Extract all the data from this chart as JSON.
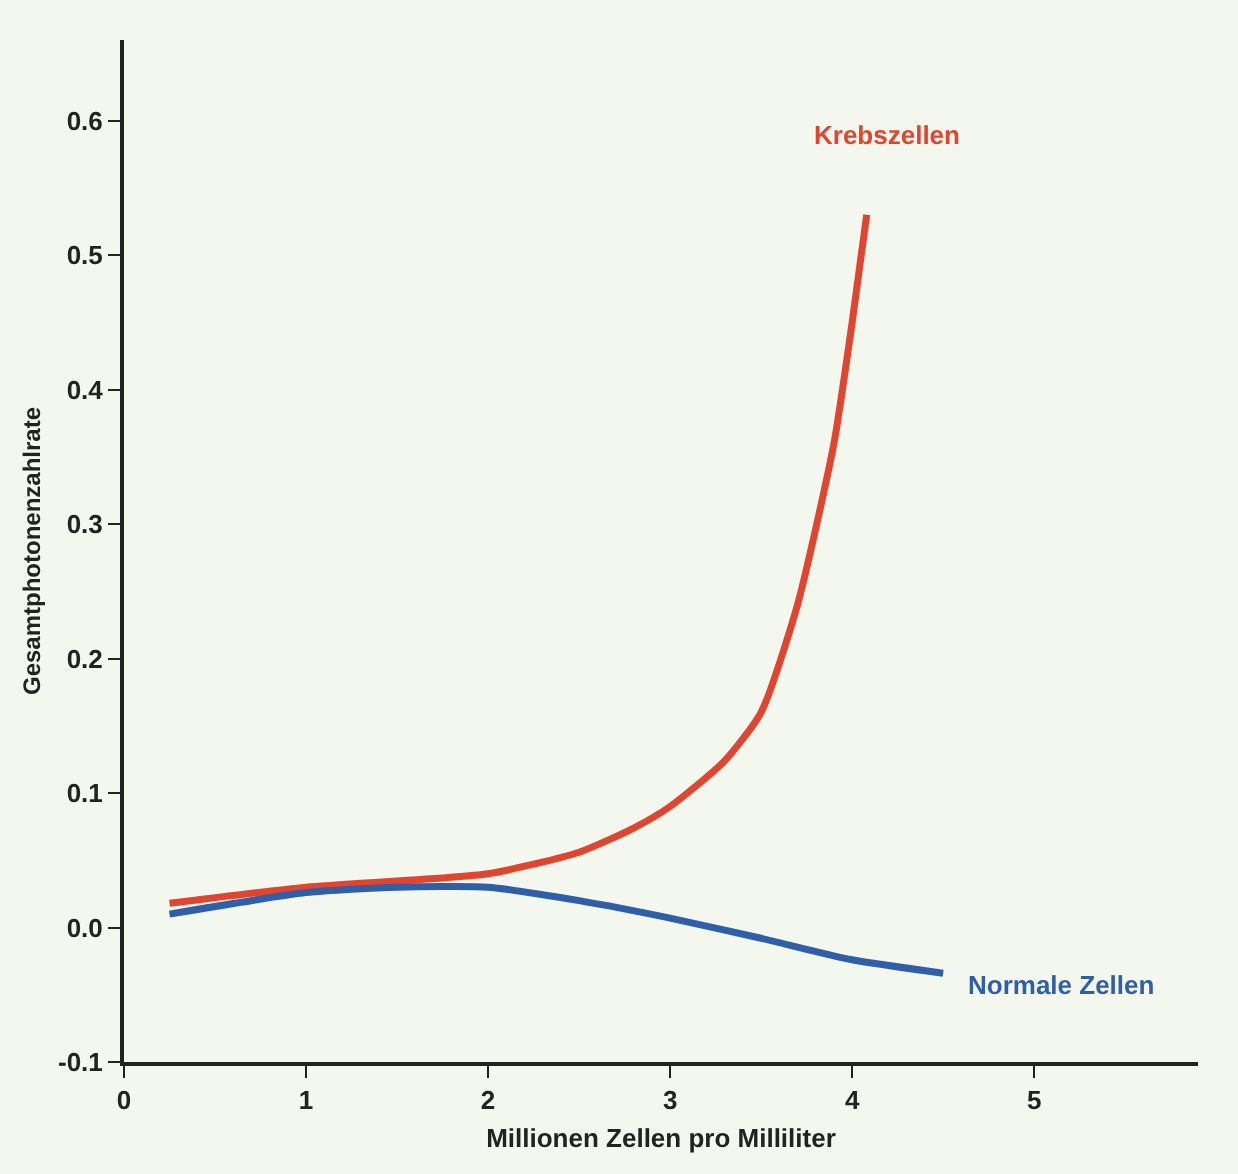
{
  "chart_data": {
    "type": "line",
    "xlabel": "Millionen Zellen pro Milliliter",
    "ylabel": "Gesamtphotonenzahlrate",
    "xlim": [
      0,
      5.9
    ],
    "ylim": [
      -0.1,
      0.66
    ],
    "xticks": [
      0,
      1,
      2,
      3,
      4,
      5
    ],
    "yticks": [
      -0.1,
      {
        "value": 0,
        "label": "0.0"
      },
      0.1,
      0.2,
      0.3,
      0.4,
      0.5,
      0.6
    ],
    "grid": false,
    "legend": false,
    "marker": "none",
    "line_style": "solid",
    "series": [
      {
        "name": "Krebszellen",
        "color": "#e0452f",
        "x": [
          0.25,
          1,
          2,
          2.5,
          2.8,
          3,
          3.3,
          3.5,
          3.7,
          3.9,
          4,
          4.08
        ],
        "values": [
          0.018,
          0.03,
          0.04,
          0.056,
          0.074,
          0.09,
          0.124,
          0.16,
          0.24,
          0.36,
          0.45,
          0.53
        ]
      },
      {
        "name": "Normale Zellen",
        "color": "#2f5fa8",
        "x": [
          0.25,
          1,
          1.5,
          2,
          2.5,
          3,
          3.5,
          4,
          4.5
        ],
        "values": [
          0.01,
          0.026,
          0.03,
          0.03,
          0.02,
          0.007,
          -0.008,
          -0.024,
          -0.034
        ]
      }
    ]
  }
}
